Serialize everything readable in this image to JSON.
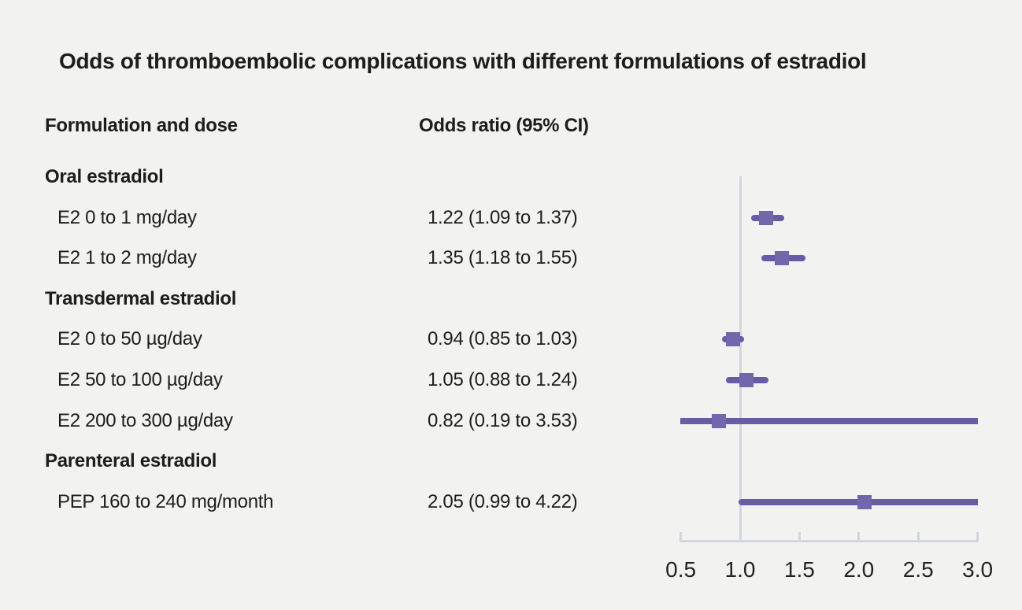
{
  "title": "Odds of thromboembolic complications with different formulations of estradiol",
  "columns": {
    "formulation": "Formulation and dose",
    "odds_ratio": "Odds ratio (95% CI)"
  },
  "colors": {
    "background": "#f2f2f1",
    "text": "#1d1d1b",
    "ci_line": "#685ca7",
    "marker_square": "#7466ac",
    "axis": "#d2d6dd"
  },
  "chart_data": {
    "type": "forest",
    "title": "Odds of thromboembolic complications with different formulations of estradiol",
    "xlim": [
      0.5,
      3.0
    ],
    "reference_line": 1.0,
    "tick_labels": [
      "0.5",
      "1.0",
      "1.5",
      "2.0",
      "2.5",
      "3.0"
    ],
    "grid": false,
    "groups": [
      {
        "label": "Oral estradiol",
        "items": [
          {
            "label": "E2 0 to 1 mg/day",
            "or_text": "1.22 (1.09 to 1.37)",
            "or": 1.22,
            "lo": 1.09,
            "hi": 1.37
          },
          {
            "label": "E2 1 to 2 mg/day",
            "or_text": "1.35 (1.18 to 1.55)",
            "or": 1.35,
            "lo": 1.18,
            "hi": 1.55
          }
        ]
      },
      {
        "label": "Transdermal estradiol",
        "items": [
          {
            "label": "E2 0 to 50 µg/day",
            "or_text": "0.94 (0.85 to 1.03)",
            "or": 0.94,
            "lo": 0.85,
            "hi": 1.03
          },
          {
            "label": "E2 50 to 100 µg/day",
            "or_text": "1.05 (0.88 to 1.24)",
            "or": 1.05,
            "lo": 0.88,
            "hi": 1.24
          },
          {
            "label": "E2 200 to 300 µg/day",
            "or_text": "0.82 (0.19 to 3.53)",
            "or": 0.82,
            "lo": 0.19,
            "hi": 3.53
          }
        ]
      },
      {
        "label": "Parenteral estradiol",
        "items": [
          {
            "label": "PEP 160 to 240 mg/month",
            "or_text": "2.05 (0.99 to 4.22)",
            "or": 2.05,
            "lo": 0.99,
            "hi": 4.22
          }
        ]
      }
    ]
  }
}
